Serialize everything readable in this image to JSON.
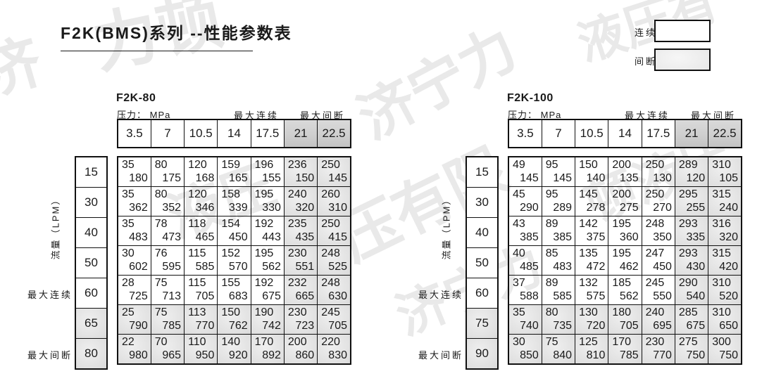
{
  "title": "F2K(BMS)系列 --性能参数表",
  "legend": {
    "continuous_label": "连续",
    "intermittent_label": "间断"
  },
  "watermarks": [
    "力顿",
    "济",
    "液压有",
    "济宁力",
    "压有限",
    "液压",
    "济宁力",
    "顿液压"
  ],
  "colors": {
    "background": "#ffffff",
    "border": "#111111",
    "text": "#1a1a1a",
    "gray_cell_light": "#efefef",
    "gray_cell_dark": "#c6c6c6",
    "watermark": "#cccccc"
  },
  "tables": [
    {
      "name": "F2K-80",
      "pressure_label": "压力： MPa",
      "max_continuous_label": "最大连续",
      "max_intermittent_label": "最大间断",
      "flow_axis_label": "流量（LPM）",
      "pressures": [
        "3.5",
        "7",
        "10.5",
        "14",
        "17.5",
        "21",
        "22.5"
      ],
      "gray_pressure_cols": [
        5,
        6
      ],
      "rows": [
        {
          "flow": "15",
          "gray": false,
          "values": [
            [
              "35",
              "180"
            ],
            [
              "80",
              "175"
            ],
            [
              "120",
              "168"
            ],
            [
              "159",
              "165"
            ],
            [
              "196",
              "155"
            ],
            [
              "236",
              "150"
            ],
            [
              "250",
              "145"
            ]
          ]
        },
        {
          "flow": "30",
          "gray": false,
          "values": [
            [
              "35",
              "362"
            ],
            [
              "80",
              "352"
            ],
            [
              "120",
              "346"
            ],
            [
              "158",
              "339"
            ],
            [
              "195",
              "330"
            ],
            [
              "240",
              "320"
            ],
            [
              "260",
              "310"
            ]
          ]
        },
        {
          "flow": "40",
          "gray": false,
          "values": [
            [
              "35",
              "483"
            ],
            [
              "78",
              "473"
            ],
            [
              "118",
              "465"
            ],
            [
              "154",
              "450"
            ],
            [
              "192",
              "443"
            ],
            [
              "235",
              "435"
            ],
            [
              "250",
              "415"
            ]
          ]
        },
        {
          "flow": "50",
          "gray": false,
          "values": [
            [
              "30",
              "602"
            ],
            [
              "76",
              "595"
            ],
            [
              "115",
              "585"
            ],
            [
              "152",
              "570"
            ],
            [
              "195",
              "562"
            ],
            [
              "230",
              "551"
            ],
            [
              "248",
              "525"
            ]
          ]
        },
        {
          "flow": "60",
          "gray": false,
          "values": [
            [
              "28",
              "725"
            ],
            [
              "75",
              "713"
            ],
            [
              "115",
              "705"
            ],
            [
              "155",
              "683"
            ],
            [
              "192",
              "675"
            ],
            [
              "232",
              "665"
            ],
            [
              "248",
              "630"
            ]
          ]
        },
        {
          "flow": "65",
          "gray": true,
          "values": [
            [
              "25",
              "790"
            ],
            [
              "75",
              "785"
            ],
            [
              "113",
              "770"
            ],
            [
              "150",
              "762"
            ],
            [
              "190",
              "742"
            ],
            [
              "230",
              "723"
            ],
            [
              "245",
              "705"
            ]
          ]
        },
        {
          "flow": "80",
          "gray": true,
          "values": [
            [
              "22",
              "980"
            ],
            [
              "70",
              "965"
            ],
            [
              "110",
              "950"
            ],
            [
              "140",
              "920"
            ],
            [
              "170",
              "892"
            ],
            [
              "200",
              "860"
            ],
            [
              "220",
              "830"
            ]
          ]
        }
      ]
    },
    {
      "name": "F2K-100",
      "pressure_label": "压力： MPa",
      "max_continuous_label": "最大连续",
      "max_intermittent_label": "最大间断",
      "flow_axis_label": "流量（LPM）",
      "pressures": [
        "3.5",
        "7",
        "10.5",
        "14",
        "17.5",
        "21",
        "22.5"
      ],
      "gray_pressure_cols": [
        5,
        6
      ],
      "rows": [
        {
          "flow": "15",
          "gray": false,
          "values": [
            [
              "49",
              "145"
            ],
            [
              "95",
              "145"
            ],
            [
              "150",
              "140"
            ],
            [
              "200",
              "135"
            ],
            [
              "250",
              "130"
            ],
            [
              "289",
              "120"
            ],
            [
              "310",
              "105"
            ]
          ]
        },
        {
          "flow": "30",
          "gray": false,
          "values": [
            [
              "45",
              "290"
            ],
            [
              "95",
              "289"
            ],
            [
              "145",
              "278"
            ],
            [
              "200",
              "275"
            ],
            [
              "250",
              "270"
            ],
            [
              "295",
              "255"
            ],
            [
              "315",
              "240"
            ]
          ]
        },
        {
          "flow": "40",
          "gray": false,
          "values": [
            [
              "43",
              "385"
            ],
            [
              "89",
              "385"
            ],
            [
              "142",
              "375"
            ],
            [
              "195",
              "360"
            ],
            [
              "248",
              "350"
            ],
            [
              "293",
              "335"
            ],
            [
              "316",
              "320"
            ]
          ]
        },
        {
          "flow": "50",
          "gray": false,
          "values": [
            [
              "40",
              "485"
            ],
            [
              "85",
              "483"
            ],
            [
              "135",
              "472"
            ],
            [
              "195",
              "462"
            ],
            [
              "247",
              "450"
            ],
            [
              "293",
              "430"
            ],
            [
              "315",
              "420"
            ]
          ]
        },
        {
          "flow": "60",
          "gray": false,
          "values": [
            [
              "37",
              "588"
            ],
            [
              "89",
              "585"
            ],
            [
              "132",
              "575"
            ],
            [
              "185",
              "562"
            ],
            [
              "245",
              "550"
            ],
            [
              "290",
              "540"
            ],
            [
              "310",
              "520"
            ]
          ]
        },
        {
          "flow": "75",
          "gray": true,
          "values": [
            [
              "35",
              "740"
            ],
            [
              "80",
              "735"
            ],
            [
              "130",
              "720"
            ],
            [
              "180",
              "705"
            ],
            [
              "240",
              "695"
            ],
            [
              "285",
              "675"
            ],
            [
              "310",
              "650"
            ]
          ]
        },
        {
          "flow": "90",
          "gray": true,
          "values": [
            [
              "30",
              "850"
            ],
            [
              "75",
              "840"
            ],
            [
              "125",
              "810"
            ],
            [
              "170",
              "785"
            ],
            [
              "230",
              "770"
            ],
            [
              "275",
              "750"
            ],
            [
              "300",
              "750"
            ]
          ]
        }
      ]
    }
  ]
}
